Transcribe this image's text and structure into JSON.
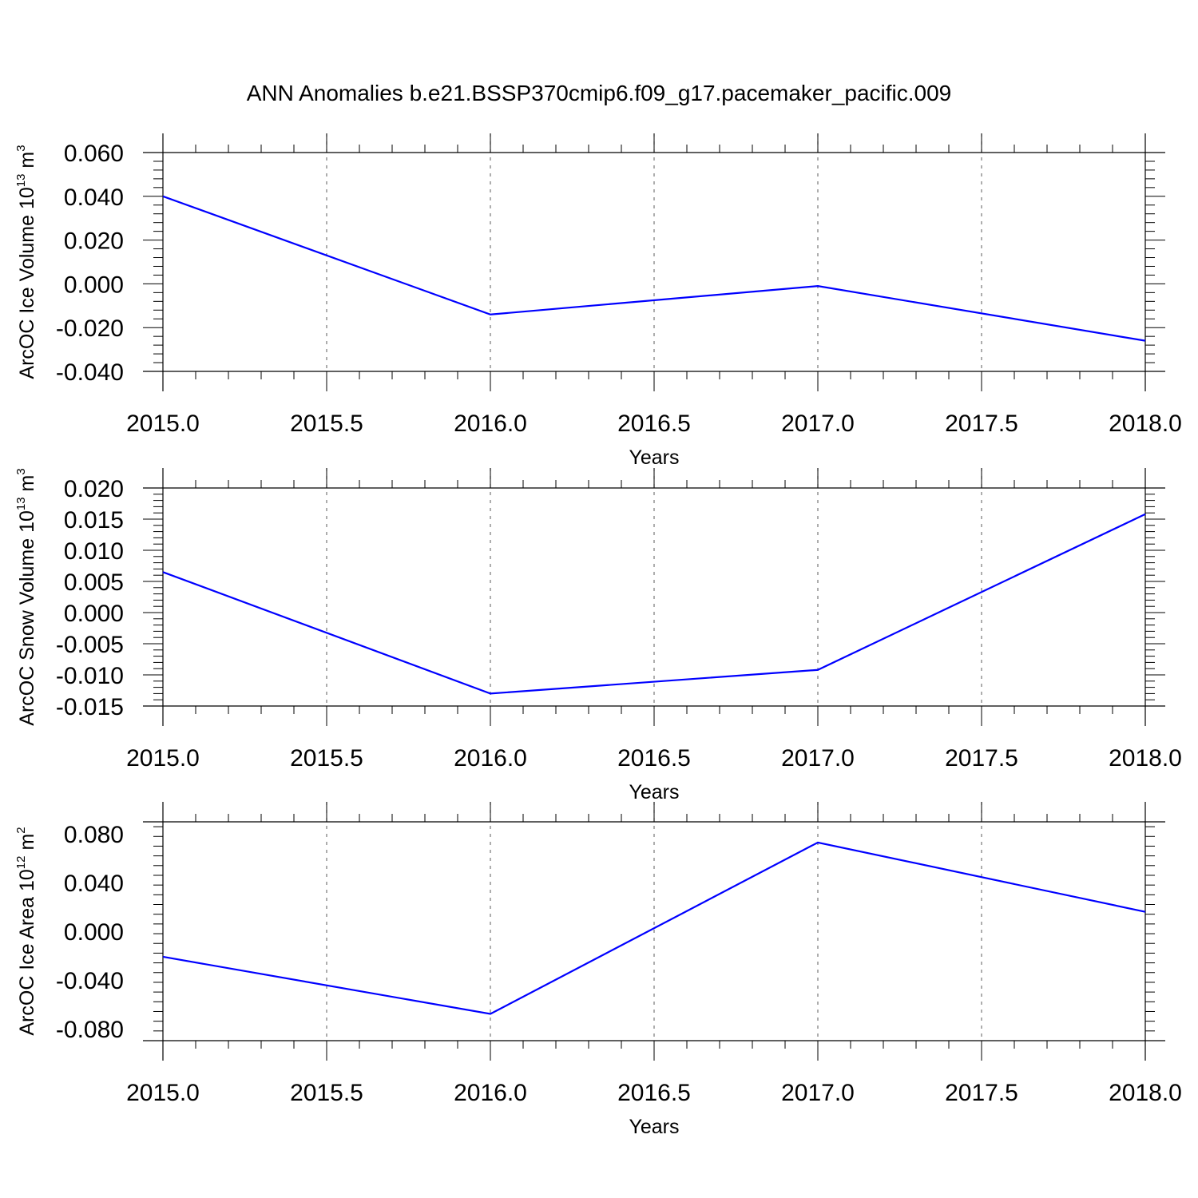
{
  "title": "ANN Anomalies b.e21.BSSP370cmip6.f09_g17.pacemaker_pacific.009",
  "chart_data": [
    {
      "type": "line",
      "xlabel": "Years",
      "ylabel": {
        "main": "ArcOC Ice Volume 10",
        "exp": "13",
        "unit": " m",
        "unit_exp": "3"
      },
      "x": [
        2015,
        2016,
        2017,
        2018
      ],
      "xlim": [
        2015,
        2018
      ],
      "xticks": [
        "2015.0",
        "2015.5",
        "2016.0",
        "2016.5",
        "2017.0",
        "2017.5",
        "2018.0"
      ],
      "ylim": [
        -0.04,
        0.06
      ],
      "yticks": [
        "0.060",
        "0.040",
        "0.020",
        "0.000",
        "-0.020",
        "-0.040"
      ],
      "series": [
        {
          "values": [
            0.04,
            -0.014,
            -0.001,
            -0.026
          ],
          "color": "#0000ff"
        }
      ],
      "grid": "vertical dashed"
    },
    {
      "type": "line",
      "xlabel": "Years",
      "ylabel": {
        "main": "ArcOC Snow Volume 10",
        "exp": "13",
        "unit": " m",
        "unit_exp": "3"
      },
      "x": [
        2015,
        2016,
        2017,
        2018
      ],
      "xlim": [
        2015,
        2018
      ],
      "xticks": [
        "2015.0",
        "2015.5",
        "2016.0",
        "2016.5",
        "2017.0",
        "2017.5",
        "2018.0"
      ],
      "ylim": [
        -0.015,
        0.02
      ],
      "yticks": [
        "0.020",
        "0.015",
        "0.010",
        "0.005",
        "0.000",
        "-0.005",
        "-0.010",
        "-0.015"
      ],
      "series": [
        {
          "values": [
            0.0065,
            -0.013,
            -0.0092,
            0.0158
          ],
          "color": "#0000ff"
        }
      ],
      "grid": "vertical dashed"
    },
    {
      "type": "line",
      "xlabel": "Years",
      "ylabel": {
        "main": "ArcOC Ice Area 10",
        "exp": "12",
        "unit": " m",
        "unit_exp": "2"
      },
      "x": [
        2015,
        2016,
        2017,
        2018
      ],
      "xlim": [
        2015,
        2018
      ],
      "xticks": [
        "2015.0",
        "2015.5",
        "2016.0",
        "2016.5",
        "2017.0",
        "2017.5",
        "2018.0"
      ],
      "ylim": [
        -0.09,
        0.09
      ],
      "yticks": [
        "0.080",
        "0.040",
        "0.000",
        "-0.040",
        "-0.080"
      ],
      "series": [
        {
          "values": [
            -0.021,
            -0.068,
            0.073,
            0.016
          ],
          "color": "#0000ff"
        }
      ],
      "grid": "vertical dashed"
    }
  ]
}
